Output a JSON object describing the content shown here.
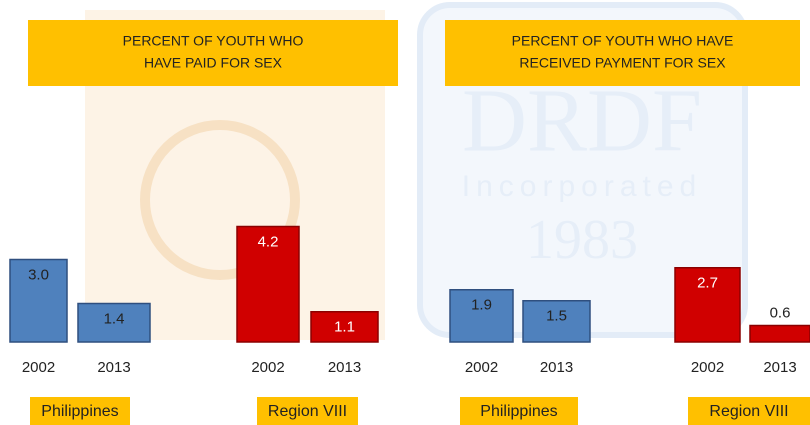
{
  "chart_data": [
    {
      "type": "bar",
      "title": [
        "PERCENT OF YOUTH WHO",
        "HAVE PAID FOR SEX"
      ],
      "categories": [
        "2002",
        "2013"
      ],
      "series": [
        {
          "name": "Philippines",
          "color": "#4f81bd",
          "values": [
            3.0,
            1.4
          ],
          "value_labels": [
            "3.0",
            "1.4"
          ]
        },
        {
          "name": "Region VIII",
          "color": "#d00000",
          "values": [
            4.2,
            1.1
          ],
          "value_labels": [
            "4.2",
            "1.1"
          ]
        }
      ]
    },
    {
      "type": "bar",
      "title": [
        "PERCENT OF YOUTH WHO HAVE",
        "RECEIVED PAYMENT FOR SEX"
      ],
      "categories": [
        "2002",
        "2013"
      ],
      "series": [
        {
          "name": "Philippines",
          "color": "#4f81bd",
          "values": [
            1.9,
            1.5
          ],
          "value_labels": [
            "1.9",
            "1.5"
          ]
        },
        {
          "name": "Region VIII",
          "color": "#d00000",
          "values": [
            2.7,
            0.6
          ],
          "value_labels": [
            "2.7",
            "0.6"
          ]
        }
      ]
    }
  ],
  "watermark": {
    "name": "DRDF",
    "subtitle": "Incorporated",
    "year": "1983"
  }
}
